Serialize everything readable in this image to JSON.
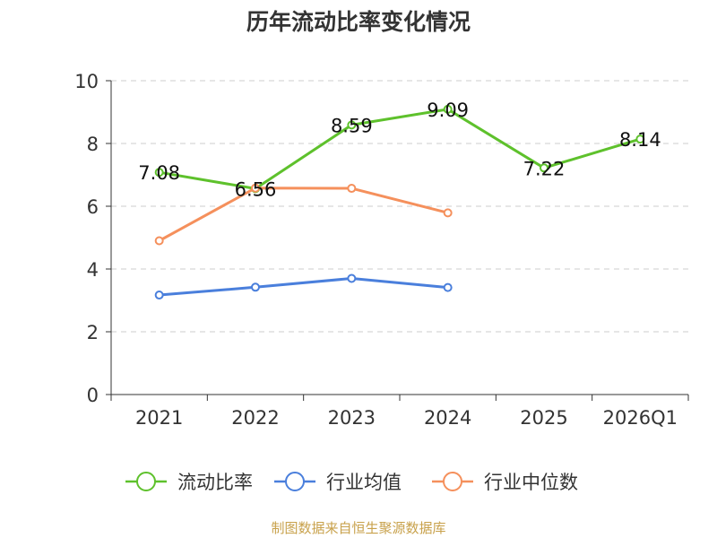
{
  "chart_data": {
    "type": "line",
    "title": "历年流动比率变化情况",
    "categories": [
      "2021",
      "2022",
      "2023",
      "2024",
      "2025",
      "2026Q1"
    ],
    "ylim": [
      0,
      10
    ],
    "yticks": [
      0,
      2,
      4,
      6,
      8,
      10
    ],
    "grid": true,
    "legend_position": "bottom",
    "series": [
      {
        "name": "流动比率",
        "color": "#5ec12c",
        "values": [
          7.08,
          6.56,
          8.59,
          9.09,
          7.22,
          8.14
        ],
        "show_labels": true,
        "labels": [
          "7.08",
          "6.56",
          "8.59",
          "9.09",
          "7.22",
          "8.14"
        ]
      },
      {
        "name": "行业均值",
        "color": "#4a7fdc",
        "values": [
          3.17,
          3.42,
          3.7,
          3.41,
          null,
          null
        ],
        "show_labels": false
      },
      {
        "name": "行业中位数",
        "color": "#f5905c",
        "values": [
          4.9,
          6.58,
          6.57,
          5.79,
          null,
          null
        ],
        "show_labels": false
      }
    ],
    "source_note": "制图数据来自恒生聚源数据库",
    "source_color": "#c8a14b"
  }
}
